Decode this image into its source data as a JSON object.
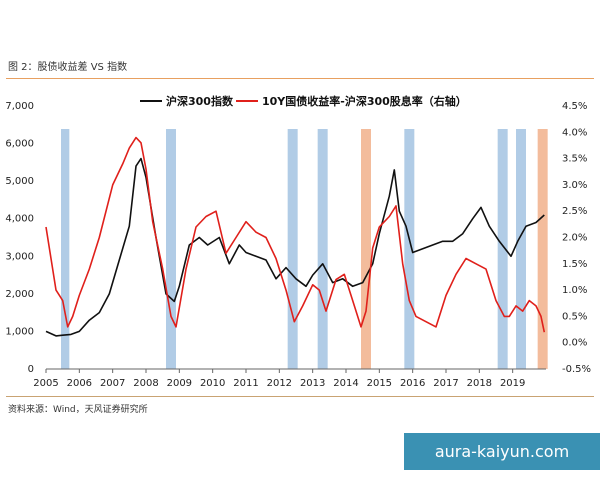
{
  "figure_title": "图 2：股债收益差 VS 指数",
  "source": "资料来源：Wind，天风证券研究所",
  "watermark": "aura-kaiyun.com",
  "colors": {
    "index": "#111111",
    "spread": "#e0201b",
    "blue_band": "#a8c6e3",
    "orange_band": "#f2b591"
  },
  "chart_data": {
    "type": "line",
    "title": "",
    "legend": [
      "沪深300指数",
      "10Y国债收益率-沪深300股息率（右轴）"
    ],
    "legend_position": "top",
    "x_ticks": [
      "2005",
      "2006",
      "2007",
      "2008",
      "2009",
      "2010",
      "2011",
      "2012",
      "2013",
      "2014",
      "2015",
      "2016",
      "2017",
      "2018",
      "2019"
    ],
    "x_range": [
      2005.0,
      2020.0
    ],
    "y_left": {
      "range": [
        0,
        7000
      ],
      "ticks": [
        "0",
        "1,000",
        "2,000",
        "3,000",
        "4,000",
        "5,000",
        "6,000",
        "7,000"
      ]
    },
    "y_right": {
      "range": [
        -0.5,
        4.5
      ],
      "ticks": [
        "-0.5%",
        "0.0%",
        "0.5%",
        "1.0%",
        "1.5%",
        "2.0%",
        "2.5%",
        "3.0%",
        "3.5%",
        "4.0%",
        "4.5%"
      ]
    },
    "bands": [
      {
        "from": 2005.45,
        "to": 2005.7,
        "color": "blue"
      },
      {
        "from": 2008.6,
        "to": 2008.9,
        "color": "blue"
      },
      {
        "from": 2012.25,
        "to": 2012.55,
        "color": "blue"
      },
      {
        "from": 2013.15,
        "to": 2013.45,
        "color": "blue"
      },
      {
        "from": 2014.45,
        "to": 2014.75,
        "color": "orange"
      },
      {
        "from": 2015.75,
        "to": 2016.05,
        "color": "blue"
      },
      {
        "from": 2018.55,
        "to": 2018.85,
        "color": "blue"
      },
      {
        "from": 2019.1,
        "to": 2019.4,
        "color": "blue"
      },
      {
        "from": 2019.75,
        "to": 2020.05,
        "color": "orange"
      }
    ],
    "series": [
      {
        "name": "沪深300指数",
        "axis": "left",
        "x": [
          2005.0,
          2005.3,
          2005.5,
          2005.75,
          2006.0,
          2006.3,
          2006.6,
          2006.9,
          2007.2,
          2007.5,
          2007.7,
          2007.85,
          2008.0,
          2008.3,
          2008.6,
          2008.85,
          2009.0,
          2009.3,
          2009.6,
          2009.85,
          2010.2,
          2010.5,
          2010.8,
          2011.0,
          2011.3,
          2011.6,
          2011.9,
          2012.2,
          2012.5,
          2012.8,
          2013.0,
          2013.3,
          2013.6,
          2013.9,
          2014.2,
          2014.5,
          2014.8,
          2015.0,
          2015.3,
          2015.45,
          2015.6,
          2015.8,
          2016.0,
          2016.3,
          2016.6,
          2016.9,
          2017.2,
          2017.5,
          2017.8,
          2018.05,
          2018.3,
          2018.6,
          2018.95,
          2019.15,
          2019.4,
          2019.7,
          2019.95
        ],
        "values": [
          1000,
          880,
          900,
          920,
          1000,
          1300,
          1500,
          2000,
          2900,
          3800,
          5400,
          5600,
          5100,
          3500,
          2000,
          1800,
          2200,
          3300,
          3500,
          3300,
          3500,
          2800,
          3300,
          3100,
          3000,
          2900,
          2400,
          2700,
          2400,
          2200,
          2500,
          2800,
          2300,
          2400,
          2200,
          2300,
          2800,
          3600,
          4600,
          5300,
          4200,
          3800,
          3100,
          3200,
          3300,
          3400,
          3400,
          3600,
          4000,
          4300,
          3800,
          3400,
          3000,
          3400,
          3800,
          3900,
          4100
        ]
      },
      {
        "name": "10Y国债收益率-沪深300股息率（右轴）",
        "axis": "right",
        "x": [
          2005.0,
          2005.15,
          2005.3,
          2005.5,
          2005.65,
          2005.8,
          2006.0,
          2006.3,
          2006.6,
          2007.0,
          2007.3,
          2007.5,
          2007.7,
          2007.85,
          2008.0,
          2008.2,
          2008.5,
          2008.75,
          2008.9,
          2009.2,
          2009.5,
          2009.8,
          2010.1,
          2010.4,
          2010.7,
          2011.0,
          2011.3,
          2011.6,
          2011.9,
          2012.2,
          2012.45,
          2012.7,
          2013.0,
          2013.2,
          2013.4,
          2013.7,
          2013.95,
          2014.2,
          2014.45,
          2014.6,
          2014.8,
          2015.0,
          2015.3,
          2015.5,
          2015.7,
          2015.9,
          2016.1,
          2016.4,
          2016.7,
          2017.0,
          2017.3,
          2017.6,
          2017.9,
          2018.2,
          2018.5,
          2018.75,
          2018.9,
          2019.1,
          2019.3,
          2019.5,
          2019.7,
          2019.85,
          2019.95
        ],
        "values": [
          2.2,
          1.6,
          1.0,
          0.8,
          0.3,
          0.5,
          0.9,
          1.4,
          2.0,
          3.0,
          3.4,
          3.7,
          3.9,
          3.8,
          3.3,
          2.3,
          1.4,
          0.5,
          0.3,
          1.4,
          2.2,
          2.4,
          2.5,
          1.7,
          2.0,
          2.3,
          2.1,
          2.0,
          1.6,
          1.0,
          0.4,
          0.7,
          1.1,
          1.0,
          0.6,
          1.2,
          1.3,
          0.8,
          0.3,
          0.6,
          1.8,
          2.2,
          2.4,
          2.6,
          1.5,
          0.8,
          0.5,
          0.4,
          0.3,
          0.9,
          1.3,
          1.6,
          1.5,
          1.4,
          0.8,
          0.5,
          0.5,
          0.7,
          0.6,
          0.8,
          0.7,
          0.5,
          0.2
        ]
      }
    ]
  }
}
